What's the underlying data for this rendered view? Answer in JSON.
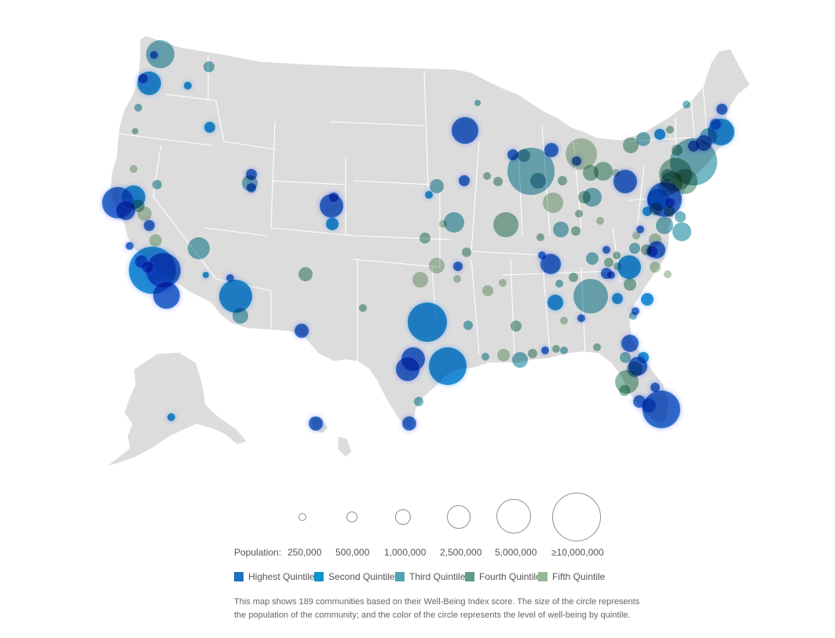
{
  "colors": {
    "highest": "#1d6fc0",
    "second": "#0a93cc",
    "third": "#4ea3b3",
    "fourth": "#5f9f84",
    "fifth": "#96b896",
    "land": "#dcdcdc",
    "circle_outline": "#8f8f8f"
  },
  "legend": {
    "population_label": "Population:",
    "sizes": [
      "250,000",
      "500,000",
      "1,000,000",
      "2,500,000",
      "5,000,000",
      "≥10,000,000"
    ],
    "quintiles": [
      {
        "label": "Highest Quintile",
        "key": "highest"
      },
      {
        "label": "Second Quintile",
        "key": "second"
      },
      {
        "label": "Third Quintile",
        "key": "third"
      },
      {
        "label": "Fourth Quintile",
        "key": "fourth"
      },
      {
        "label": "Fifth Quintile",
        "key": "fifth"
      }
    ],
    "caption_line1": "This map shows 189 communities based on their Well-Being Index score. The size of the circle represents",
    "caption_line2": "the population of the community; and the color of the circle represents the level of well-being by quintile."
  }
}
